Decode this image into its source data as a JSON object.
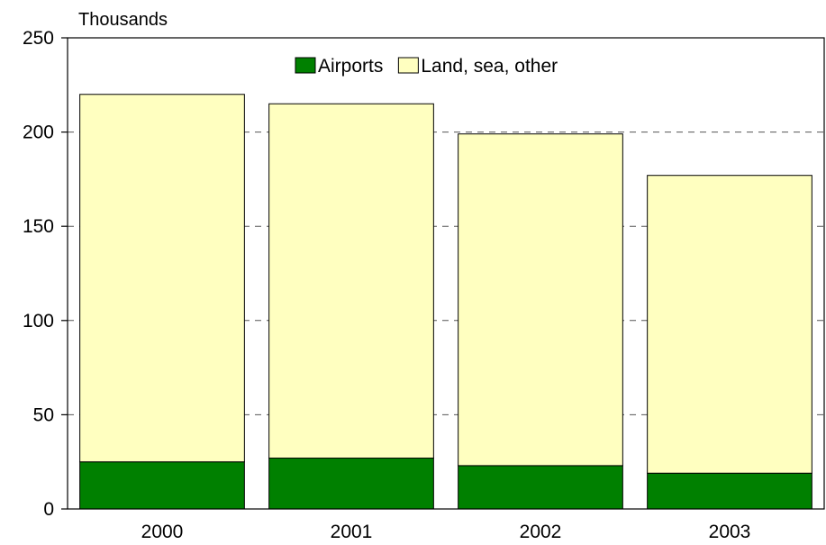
{
  "chart_data": {
    "type": "bar",
    "stacked": true,
    "unit_label": "Thousands",
    "categories": [
      "2000",
      "2001",
      "2002",
      "2003"
    ],
    "series": [
      {
        "name": "Airports",
        "color": "#008000",
        "values": [
          25,
          27,
          23,
          19
        ]
      },
      {
        "name": "Land, sea, other",
        "color": "#ffffc0",
        "values": [
          195,
          188,
          176,
          158
        ]
      }
    ],
    "ylim": [
      0,
      250
    ],
    "yticks": [
      0,
      50,
      100,
      150,
      200,
      250
    ],
    "grid": "dashed horizontal",
    "legend_position": "top-center"
  }
}
